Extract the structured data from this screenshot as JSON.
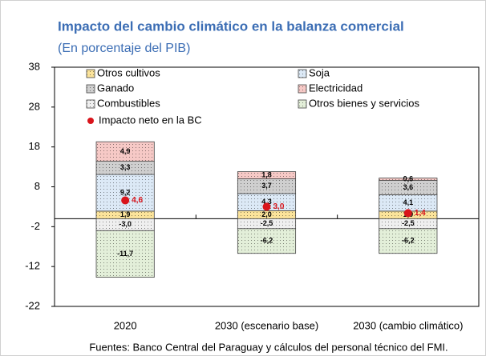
{
  "chart_data": {
    "type": "bar",
    "title": "Impacto del cambio climático en la balanza comercial",
    "subtitle": "(En porcentaje del PIB)",
    "source": "Fuentes: Banco Central del Paraguay y cálculos del personal técnico del FMI.",
    "categories": [
      "2020",
      "2030 (escenario base)",
      "2030 (cambio climático)"
    ],
    "stacked": true,
    "series": [
      {
        "name": "Otros cultivos",
        "color": "#fbe39a",
        "values": [
          1.9,
          2.0,
          1.9
        ],
        "value_labels": [
          "1,9",
          "2,0",
          "1,9"
        ]
      },
      {
        "name": "Soja",
        "color": "#dce9f6",
        "values": [
          9.2,
          4.3,
          4.1
        ],
        "value_labels": [
          "9,2",
          "4,3",
          "4,1"
        ]
      },
      {
        "name": "Ganado",
        "color": "#cfcfcf",
        "values": [
          3.3,
          3.7,
          3.6
        ],
        "value_labels": [
          "3,3",
          "3,7",
          "3,6"
        ]
      },
      {
        "name": "Electricidad",
        "color": "#f6c9c6",
        "values": [
          4.9,
          1.8,
          0.6
        ],
        "value_labels": [
          "4,9",
          "1,8",
          "0,6"
        ]
      },
      {
        "name": "Combustibles",
        "color": "#efefef",
        "values": [
          -3.0,
          -2.5,
          -2.5
        ],
        "value_labels": [
          "-3,0",
          "-2,5",
          "-2,5"
        ]
      },
      {
        "name": "Otros bienes y servicios",
        "color": "#e3efd9",
        "values": [
          -11.7,
          -6.2,
          -6.2
        ],
        "value_labels": [
          "-11,7",
          "-6,2",
          "-6,2"
        ]
      }
    ],
    "net_impact": {
      "name": "Impacto neto en la BC",
      "color": "#d9141b",
      "values": [
        4.6,
        3.0,
        1.4
      ],
      "value_labels": [
        "4,6",
        "3,0",
        "1,4"
      ]
    },
    "ylim": [
      -22,
      38
    ],
    "yticks": [
      -22,
      -12,
      -2,
      8,
      18,
      28,
      38
    ]
  }
}
